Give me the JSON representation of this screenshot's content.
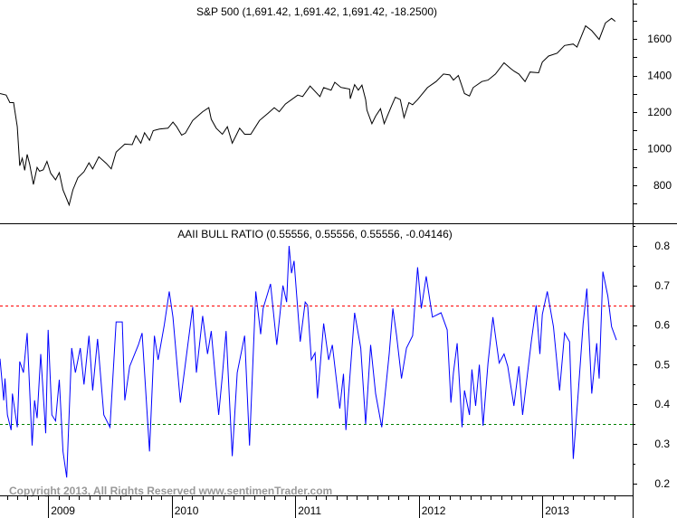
{
  "chart_data": [
    {
      "type": "line",
      "title": "S&P 500 (1,691.42, 1,691.42, 1,691.42, -18.2500)",
      "ylim": [
        640,
        1780
      ],
      "yticks": [
        800,
        1000,
        1200,
        1400,
        1600
      ],
      "grid": false,
      "line_color": "#000000",
      "series": [
        {
          "x": [
            2008.61,
            2008.66,
            2008.69,
            2008.72,
            2008.75,
            2008.77,
            2008.79,
            2008.81,
            2008.83,
            2008.85,
            2008.88,
            2008.91,
            2008.93,
            2008.96,
            2008.99,
            2009.02,
            2009.06,
            2009.09,
            2009.12,
            2009.15,
            2009.17,
            2009.2,
            2009.24,
            2009.29,
            2009.33,
            2009.36,
            2009.41,
            2009.47,
            2009.51,
            2009.55,
            2009.62,
            2009.68,
            2009.71,
            2009.75,
            2009.78,
            2009.82,
            2009.85,
            2009.9,
            2009.97,
            2010.01,
            2010.04,
            2010.08,
            2010.11,
            2010.17,
            2010.25,
            2010.3,
            2010.32,
            2010.36,
            2010.41,
            2010.45,
            2010.49,
            2010.52,
            2010.55,
            2010.59,
            2010.64,
            2010.71,
            2010.78,
            2010.83,
            2010.87,
            2010.92,
            2011.02,
            2011.06,
            2011.12,
            2011.2,
            2011.23,
            2011.29,
            2011.32,
            2011.37,
            2011.44,
            2011.445,
            2011.48,
            2011.51,
            2011.54,
            2011.57,
            2011.58,
            2011.62,
            2011.65,
            2011.69,
            2011.72,
            2011.78,
            2011.81,
            2011.85,
            2011.88,
            2011.92,
            2011.95,
            2011.99,
            2012.07,
            2012.14,
            2012.2,
            2012.25,
            2012.28,
            2012.32,
            2012.37,
            2012.41,
            2012.44,
            2012.51,
            2012.56,
            2012.62,
            2012.69,
            2012.74,
            2012.77,
            2012.81,
            2012.86,
            2012.9,
            2012.97,
            2013.0,
            2013.05,
            2013.12,
            2013.18,
            2013.25,
            2013.28,
            2013.35,
            2013.4,
            2013.46,
            2013.51,
            2013.56,
            2013.59
          ],
          "y": [
            1301,
            1293,
            1252,
            1252,
            1120,
            907,
            948,
            882,
            969,
            915,
            805,
            898,
            877,
            885,
            931,
            866,
            830,
            869,
            775,
            726,
            693,
            775,
            841,
            874,
            923,
            890,
            956,
            920,
            890,
            981,
            1025,
            1022,
            1071,
            1030,
            1087,
            1046,
            1099,
            1107,
            1112,
            1145,
            1120,
            1074,
            1085,
            1154,
            1202,
            1224,
            1161,
            1112,
            1079,
            1120,
            1030,
            1071,
            1112,
            1079,
            1079,
            1154,
            1194,
            1224,
            1202,
            1244,
            1293,
            1285,
            1342,
            1285,
            1334,
            1320,
            1363,
            1335,
            1326,
            1273,
            1350,
            1320,
            1347,
            1268,
            1211,
            1137,
            1178,
            1219,
            1137,
            1235,
            1281,
            1268,
            1170,
            1252,
            1240,
            1268,
            1334,
            1367,
            1408,
            1403,
            1375,
            1400,
            1301,
            1288,
            1334,
            1367,
            1375,
            1408,
            1469,
            1440,
            1424,
            1408,
            1367,
            1419,
            1415,
            1473,
            1506,
            1522,
            1564,
            1572,
            1555,
            1671,
            1645,
            1597,
            1687,
            1712,
            1696
          ]
        }
      ]
    },
    {
      "type": "line",
      "title": "AAII BULL RATIO (0.55556, 0.55556, 0.55556, -0.04146)",
      "ylim": [
        0.17,
        0.86
      ],
      "yticks": [
        0.2,
        0.3,
        0.4,
        0.5,
        0.6,
        0.7,
        0.8
      ],
      "ytick_labels": [
        "0.2",
        "0.3",
        "0.4",
        "0.5",
        "0.6",
        "0.7",
        "0.8"
      ],
      "grid": false,
      "line_color": "#0000ff",
      "reference_lines": [
        {
          "value": 0.65,
          "color": "#ff0000",
          "style": "dashed"
        },
        {
          "value": 0.35,
          "color": "#008000",
          "style": "dashed"
        }
      ],
      "series": [
        {
          "x": [
            2008.61,
            2008.64,
            2008.65,
            2008.67,
            2008.7,
            2008.71,
            2008.75,
            2008.77,
            2008.8,
            2008.83,
            2008.87,
            2008.89,
            2008.91,
            2008.94,
            2008.98,
            2009.0,
            2009.03,
            2009.06,
            2009.09,
            2009.12,
            2009.15,
            2009.19,
            2009.22,
            2009.26,
            2009.29,
            2009.33,
            2009.36,
            2009.4,
            2009.45,
            2009.5,
            2009.55,
            2009.6,
            2009.62,
            2009.66,
            2009.73,
            2009.76,
            2009.82,
            2009.86,
            2009.89,
            2009.94,
            2009.98,
            2010.01,
            2010.07,
            2010.17,
            2010.2,
            2010.25,
            2010.29,
            2010.32,
            2010.38,
            2010.41,
            2010.44,
            2010.49,
            2010.53,
            2010.59,
            2010.63,
            2010.68,
            2010.72,
            2010.74,
            2010.8,
            2010.85,
            2010.9,
            2010.93,
            2010.95,
            2010.97,
            2010.99,
            2011.04,
            2011.08,
            2011.1,
            2011.13,
            2011.16,
            2011.18,
            2011.23,
            2011.27,
            2011.3,
            2011.36,
            2011.39,
            2011.41,
            2011.48,
            2011.53,
            2011.57,
            2011.61,
            2011.65,
            2011.7,
            2011.76,
            2011.79,
            2011.82,
            2011.86,
            2011.9,
            2011.95,
            2011.99,
            2012.02,
            2012.06,
            2012.11,
            2012.18,
            2012.23,
            2012.26,
            2012.28,
            2012.31,
            2012.35,
            2012.37,
            2012.41,
            2012.43,
            2012.46,
            2012.49,
            2012.52,
            2012.56,
            2012.6,
            2012.65,
            2012.69,
            2012.72,
            2012.77,
            2012.81,
            2012.84,
            2012.91,
            2012.95,
            2012.98,
            2013.0,
            2013.04,
            2013.09,
            2013.14,
            2013.18,
            2013.22,
            2013.25,
            2013.29,
            2013.33,
            2013.36,
            2013.4,
            2013.44,
            2013.46,
            2013.49,
            2013.53,
            2013.56,
            2013.6
          ],
          "y": [
            0.515,
            0.41,
            0.465,
            0.373,
            0.335,
            0.427,
            0.342,
            0.508,
            0.48,
            0.58,
            0.296,
            0.41,
            0.365,
            0.527,
            0.327,
            0.588,
            0.373,
            0.358,
            0.462,
            0.281,
            0.215,
            0.542,
            0.48,
            0.542,
            0.45,
            0.573,
            0.435,
            0.565,
            0.373,
            0.342,
            0.608,
            0.608,
            0.41,
            0.496,
            0.55,
            0.58,
            0.281,
            0.573,
            0.512,
            0.6,
            0.685,
            0.62,
            0.404,
            0.646,
            0.48,
            0.623,
            0.527,
            0.585,
            0.373,
            0.473,
            0.585,
            0.269,
            0.48,
            0.573,
            0.296,
            0.685,
            0.577,
            0.642,
            0.704,
            0.55,
            0.7,
            0.658,
            0.8,
            0.731,
            0.762,
            0.558,
            0.658,
            0.65,
            0.512,
            0.53,
            0.415,
            0.604,
            0.512,
            0.55,
            0.389,
            0.477,
            0.335,
            0.631,
            0.542,
            0.35,
            0.55,
            0.427,
            0.342,
            0.527,
            0.642,
            0.573,
            0.465,
            0.542,
            0.573,
            0.746,
            0.642,
            0.723,
            0.62,
            0.631,
            0.588,
            0.404,
            0.48,
            0.554,
            0.342,
            0.435,
            0.373,
            0.488,
            0.396,
            0.5,
            0.346,
            0.504,
            0.62,
            0.504,
            0.527,
            0.496,
            0.396,
            0.496,
            0.373,
            0.558,
            0.65,
            0.527,
            0.627,
            0.685,
            0.596,
            0.435,
            0.58,
            0.558,
            0.262,
            0.427,
            0.604,
            0.692,
            0.427,
            0.554,
            0.465,
            0.735,
            0.673,
            0.596,
            0.562
          ]
        }
      ]
    }
  ],
  "x_axis": {
    "tick_labels": [
      "2009",
      "2010",
      "2011",
      "2012",
      "2013"
    ],
    "tick_years": [
      2009,
      2010,
      2011,
      2012,
      2013
    ],
    "minor_ticks": "monthly"
  },
  "copyright": "Copyright 2013, All Rights Reserved  www.sentimenTrader.com"
}
